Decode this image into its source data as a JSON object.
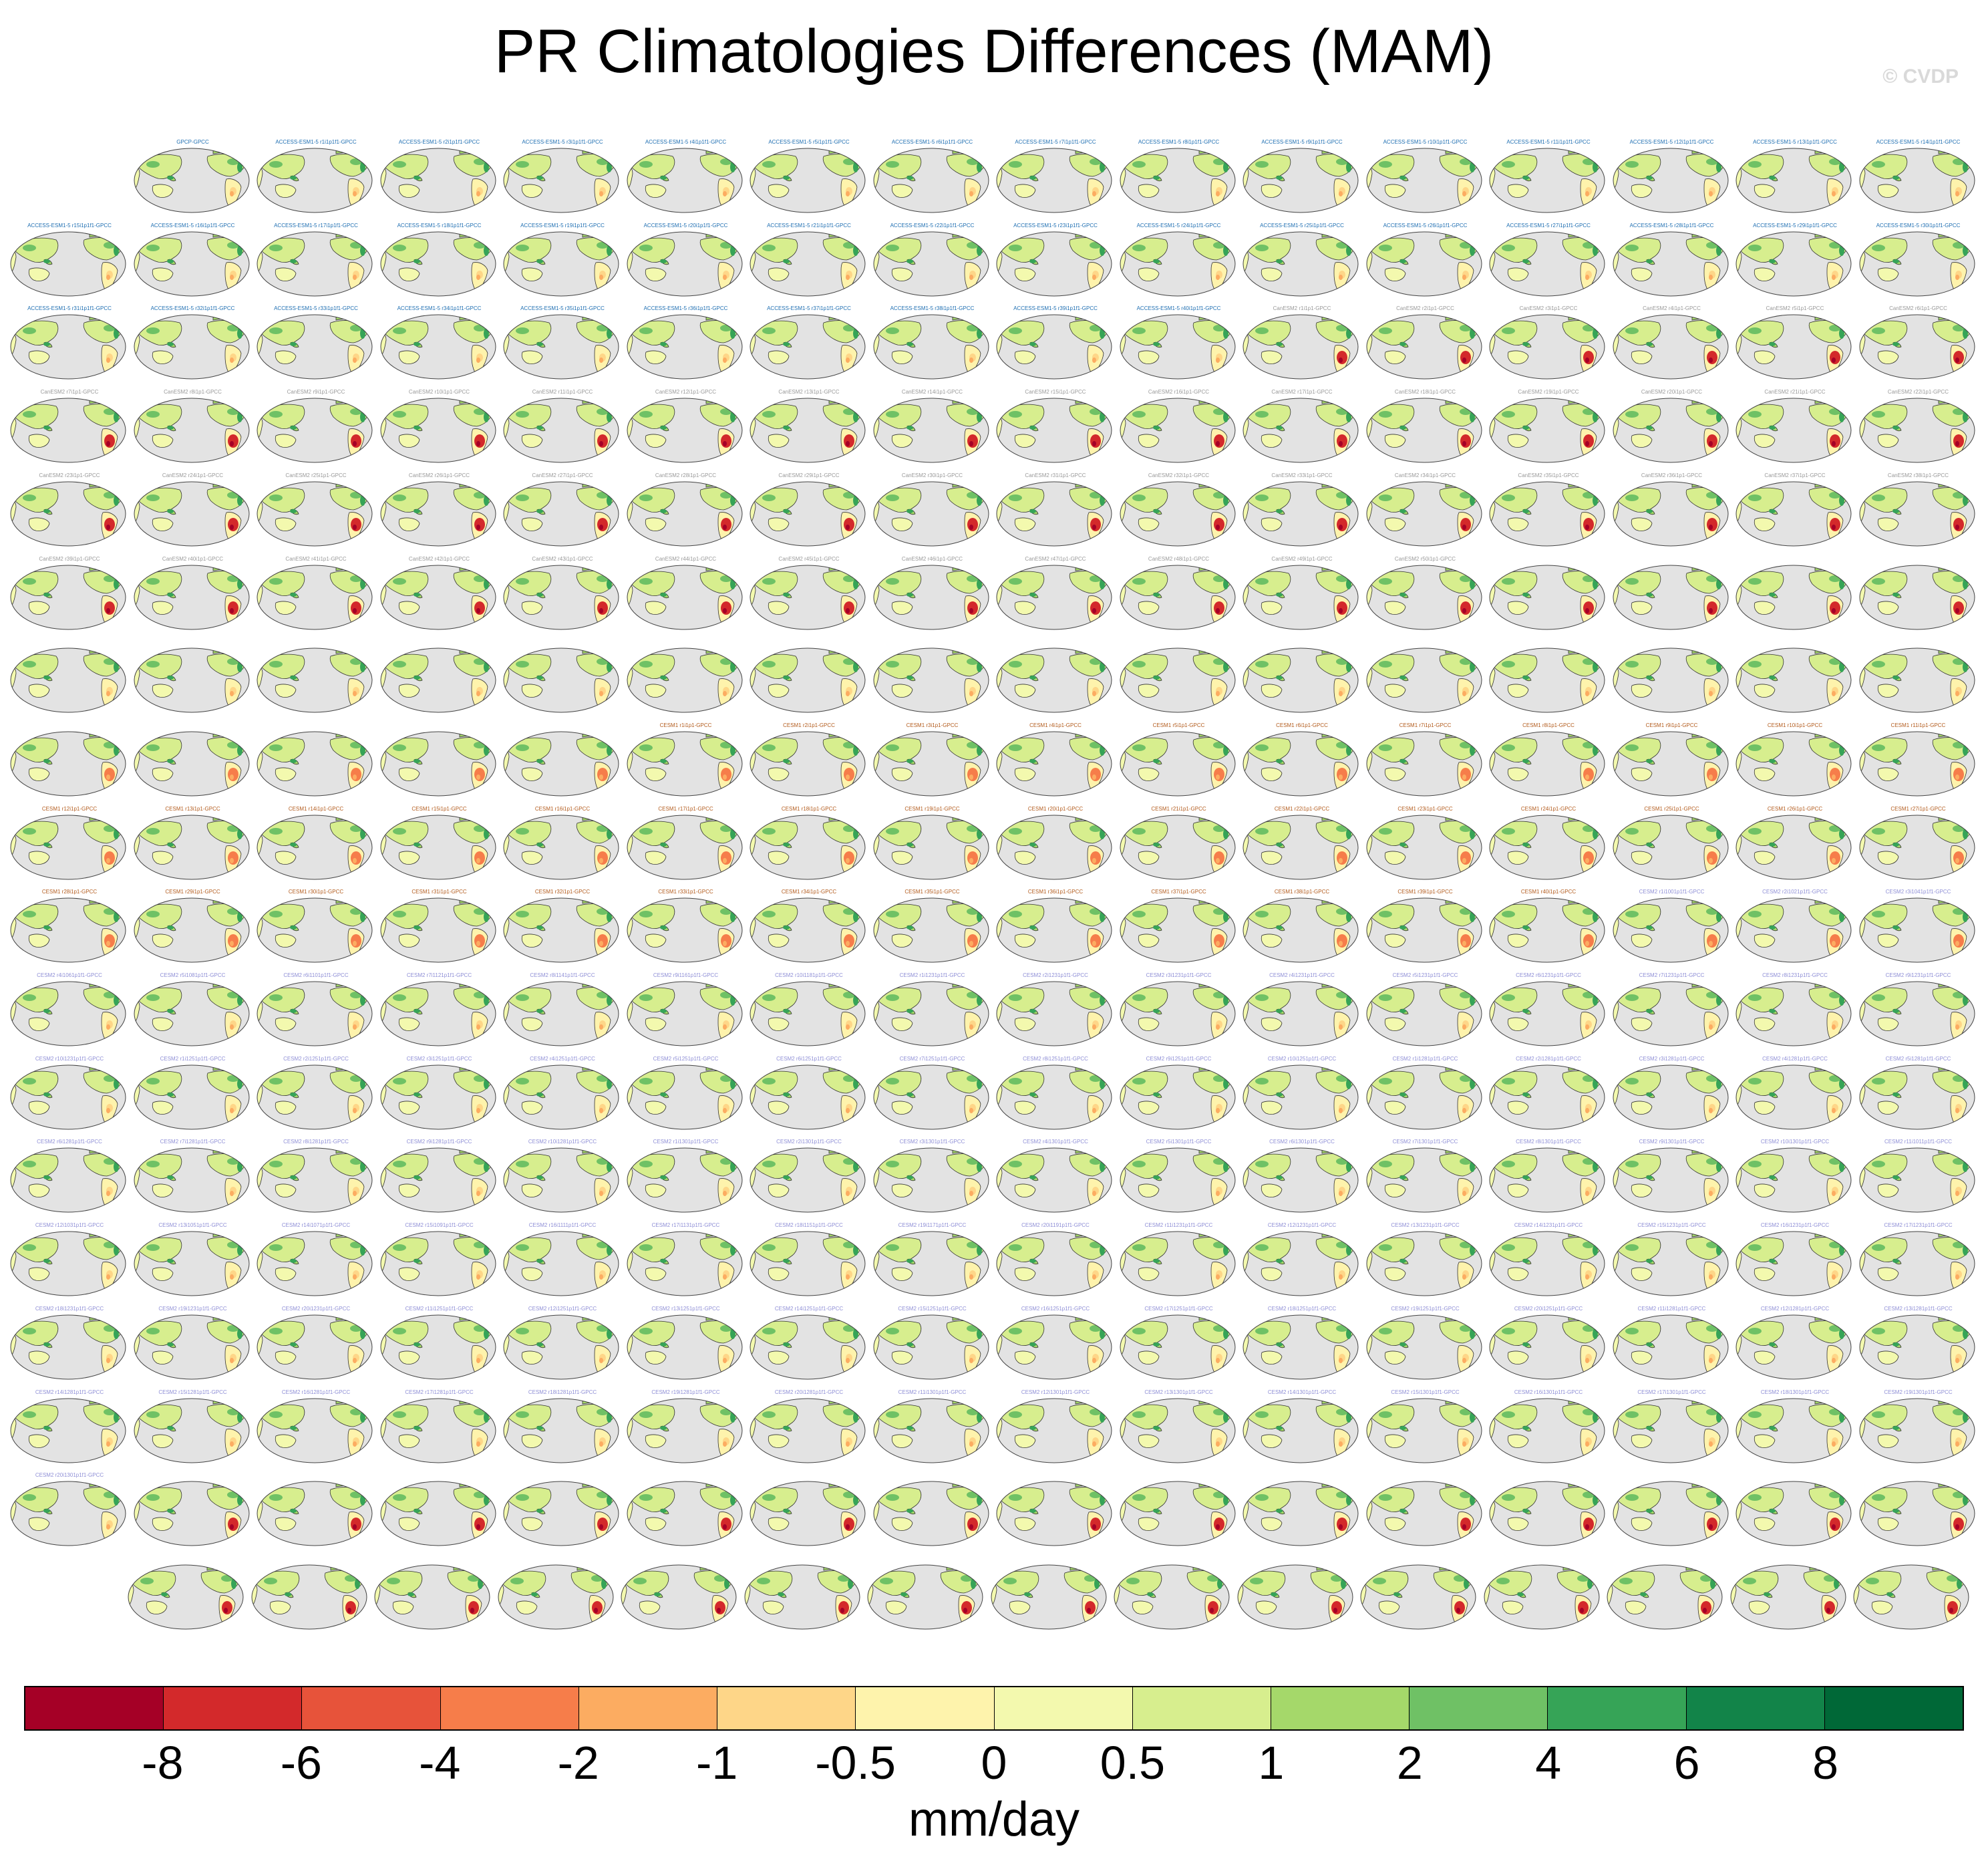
{
  "title": "PR Climatologies Differences (MAM)",
  "watermark": "© CVDP",
  "colors": {
    "ocean": "#e3e3e3",
    "coast": "#333333",
    "label_access": "#1f6fb2",
    "label_canesm": "#999999",
    "label_cesm1": "#b35c1e",
    "label_cesm2": "#8f8fd6"
  },
  "chart_data": {
    "type": "heatmap",
    "panel_rows": [
      {
        "labels": [
          "GPCP-GPCC",
          "ACCESS-ESM1-5 r1i1p1f1-GPCC",
          "ACCESS-ESM1-5 r2i1p1f1-GPCC",
          "ACCESS-ESM1-5 r3i1p1f1-GPCC",
          "ACCESS-ESM1-5 r4i1p1f1-GPCC",
          "ACCESS-ESM1-5 r5i1p1f1-GPCC",
          "ACCESS-ESM1-5 r6i1p1f1-GPCC",
          "ACCESS-ESM1-5 r7i1p1f1-GPCC",
          "ACCESS-ESM1-5 r8i1p1f1-GPCC",
          "ACCESS-ESM1-5 r9i1p1f1-GPCC",
          "ACCESS-ESM1-5 r10i1p1f1-GPCC",
          "ACCESS-ESM1-5 r11i1p1f1-GPCC",
          "ACCESS-ESM1-5 r12i1p1f1-GPCC",
          "ACCESS-ESM1-5 r13i1p1f1-GPCC",
          "ACCESS-ESM1-5 r14i1p1f1-GPCC"
        ],
        "offset": 1,
        "style": "access"
      },
      {
        "labels": [
          "ACCESS-ESM1-5 r15i1p1f1-GPCC",
          "ACCESS-ESM1-5 r16i1p1f1-GPCC",
          "ACCESS-ESM1-5 r17i1p1f1-GPCC",
          "ACCESS-ESM1-5 r18i1p1f1-GPCC",
          "ACCESS-ESM1-5 r19i1p1f1-GPCC",
          "ACCESS-ESM1-5 r20i1p1f1-GPCC",
          "ACCESS-ESM1-5 r21i1p1f1-GPCC",
          "ACCESS-ESM1-5 r22i1p1f1-GPCC",
          "ACCESS-ESM1-5 r23i1p1f1-GPCC",
          "ACCESS-ESM1-5 r24i1p1f1-GPCC",
          "ACCESS-ESM1-5 r25i1p1f1-GPCC",
          "ACCESS-ESM1-5 r26i1p1f1-GPCC",
          "ACCESS-ESM1-5 r27i1p1f1-GPCC",
          "ACCESS-ESM1-5 r28i1p1f1-GPCC",
          "ACCESS-ESM1-5 r29i1p1f1-GPCC",
          "ACCESS-ESM1-5 r30i1p1f1-GPCC"
        ],
        "offset": 0,
        "style": "access"
      },
      {
        "labels": [
          "ACCESS-ESM1-5 r31i1p1f1-GPCC",
          "ACCESS-ESM1-5 r32i1p1f1-GPCC",
          "ACCESS-ESM1-5 r33i1p1f1-GPCC",
          "ACCESS-ESM1-5 r34i1p1f1-GPCC",
          "ACCESS-ESM1-5 r35i1p1f1-GPCC",
          "ACCESS-ESM1-5 r36i1p1f1-GPCC",
          "ACCESS-ESM1-5 r37i1p1f1-GPCC",
          "ACCESS-ESM1-5 r38i1p1f1-GPCC",
          "ACCESS-ESM1-5 r39i1p1f1-GPCC",
          "ACCESS-ESM1-5 r40i1p1f1-GPCC",
          "CanESM2 r1i1p1-GPCC",
          "CanESM2 r2i1p1-GPCC",
          "CanESM2 r3i1p1-GPCC",
          "CanESM2 r4i1p1-GPCC",
          "CanESM2 r5i1p1-GPCC",
          "CanESM2 r6i1p1-GPCC"
        ],
        "offset": 0,
        "style": "mixed_row3"
      },
      {
        "labels": [
          "CanESM2 r7i1p1-GPCC",
          "CanESM2 r8i1p1-GPCC",
          "CanESM2 r9i1p1-GPCC",
          "CanESM2 r10i1p1-GPCC",
          "CanESM2 r11i1p1-GPCC",
          "CanESM2 r12i1p1-GPCC",
          "CanESM2 r13i1p1-GPCC",
          "CanESM2 r14i1p1-GPCC",
          "CanESM2 r15i1p1-GPCC",
          "CanESM2 r16i1p1-GPCC",
          "CanESM2 r17i1p1-GPCC",
          "CanESM2 r18i1p1-GPCC",
          "CanESM2 r19i1p1-GPCC",
          "CanESM2 r20i1p1-GPCC",
          "CanESM2 r21i1p1-GPCC",
          "CanESM2 r22i1p1-GPCC"
        ],
        "offset": 0,
        "style": "canesm"
      },
      {
        "labels": [
          "CanESM2 r23i1p1-GPCC",
          "CanESM2 r24i1p1-GPCC",
          "CanESM2 r25i1p1-GPCC",
          "CanESM2 r26i1p1-GPCC",
          "CanESM2 r27i1p1-GPCC",
          "CanESM2 r28i1p1-GPCC",
          "CanESM2 r29i1p1-GPCC",
          "CanESM2 r30i1p1-GPCC",
          "CanESM2 r31i1p1-GPCC",
          "CanESM2 r32i1p1-GPCC",
          "CanESM2 r33i1p1-GPCC",
          "CanESM2 r34i1p1-GPCC",
          "CanESM2 r35i1p1-GPCC",
          "CanESM2 r36i1p1-GPCC",
          "CanESM2 r37i1p1-GPCC",
          "CanESM2 r38i1p1-GPCC"
        ],
        "offset": 0,
        "style": "canesm"
      },
      {
        "labels": [
          "CanESM2 r39i1p1-GPCC",
          "CanESM2 r40i1p1-GPCC",
          "CanESM2 r41i1p1-GPCC",
          "CanESM2 r42i1p1-GPCC",
          "CanESM2 r43i1p1-GPCC",
          "CanESM2 r44i1p1-GPCC",
          "CanESM2 r45i1p1-GPCC",
          "CanESM2 r46i1p1-GPCC",
          "CanESM2 r47i1p1-GPCC",
          "CanESM2 r48i1p1-GPCC",
          "CanESM2 r49i1p1-GPCC",
          "CanESM2 r50i1p1-GPCC",
          "",
          "",
          "",
          ""
        ],
        "offset": 0,
        "style": "canesm"
      },
      {
        "labels": [
          "",
          "",
          "",
          "",
          "",
          "",
          "",
          "",
          "",
          "",
          "",
          "",
          "",
          "",
          "",
          ""
        ],
        "offset": 0,
        "style": "canesm"
      },
      {
        "labels": [
          "",
          "",
          "",
          "",
          "",
          "CESM1 r1i1p1-GPCC",
          "CESM1 r2i1p1-GPCC",
          "CESM1 r3i1p1-GPCC",
          "CESM1 r4i1p1-GPCC",
          "CESM1 r5i1p1-GPCC",
          "CESM1 r6i1p1-GPCC",
          "CESM1 r7i1p1-GPCC",
          "CESM1 r8i1p1-GPCC",
          "CESM1 r9i1p1-GPCC",
          "CESM1 r10i1p1-GPCC",
          "CESM1 r11i1p1-GPCC"
        ],
        "offset": 0,
        "style": "cesm1"
      },
      {
        "labels": [
          "CESM1 r12i1p1-GPCC",
          "CESM1 r13i1p1-GPCC",
          "CESM1 r14i1p1-GPCC",
          "CESM1 r15i1p1-GPCC",
          "CESM1 r16i1p1-GPCC",
          "CESM1 r17i1p1-GPCC",
          "CESM1 r18i1p1-GPCC",
          "CESM1 r19i1p1-GPCC",
          "CESM1 r20i1p1-GPCC",
          "CESM1 r21i1p1-GPCC",
          "CESM1 r22i1p1-GPCC",
          "CESM1 r23i1p1-GPCC",
          "CESM1 r24i1p1-GPCC",
          "CESM1 r25i1p1-GPCC",
          "CESM1 r26i1p1-GPCC",
          "CESM1 r27i1p1-GPCC"
        ],
        "offset": 0,
        "style": "cesm1"
      },
      {
        "labels": [
          "CESM1 r28i1p1-GPCC",
          "CESM1 r29i1p1-GPCC",
          "CESM1 r30i1p1-GPCC",
          "CESM1 r31i1p1-GPCC",
          "CESM1 r32i1p1-GPCC",
          "CESM1 r33i1p1-GPCC",
          "CESM1 r34i1p1-GPCC",
          "CESM1 r35i1p1-GPCC",
          "CESM1 r36i1p1-GPCC",
          "CESM1 r37i1p1-GPCC",
          "CESM1 r38i1p1-GPCC",
          "CESM1 r39i1p1-GPCC",
          "CESM1 r40i1p1-GPCC",
          "CESM2 r1i1001p1f1-GPCC",
          "CESM2 r2i1021p1f1-GPCC",
          "CESM2 r3i1041p1f1-GPCC"
        ],
        "offset": 0,
        "style": "mixed_row10"
      },
      {
        "labels": [
          "CESM2 r4i1061p1f1-GPCC",
          "CESM2 r5i1081p1f1-GPCC",
          "CESM2 r6i1101p1f1-GPCC",
          "CESM2 r7i1121p1f1-GPCC",
          "CESM2 r8i1141p1f1-GPCC",
          "CESM2 r9i1161p1f1-GPCC",
          "CESM2 r10i1181p1f1-GPCC",
          "CESM2 r1i1231p1f1-GPCC",
          "CESM2 r2i1231p1f1-GPCC",
          "CESM2 r3i1231p1f1-GPCC",
          "CESM2 r4i1231p1f1-GPCC",
          "CESM2 r5i1231p1f1-GPCC",
          "CESM2 r6i1231p1f1-GPCC",
          "CESM2 r7i1231p1f1-GPCC",
          "CESM2 r8i1231p1f1-GPCC",
          "CESM2 r9i1231p1f1-GPCC"
        ],
        "offset": 0,
        "style": "cesm2"
      },
      {
        "labels": [
          "CESM2 r10i1231p1f1-GPCC",
          "CESM2 r1i1251p1f1-GPCC",
          "CESM2 r2i1251p1f1-GPCC",
          "CESM2 r3i1251p1f1-GPCC",
          "CESM2 r4i1251p1f1-GPCC",
          "CESM2 r5i1251p1f1-GPCC",
          "CESM2 r6i1251p1f1-GPCC",
          "CESM2 r7i1251p1f1-GPCC",
          "CESM2 r8i1251p1f1-GPCC",
          "CESM2 r9i1251p1f1-GPCC",
          "CESM2 r10i1251p1f1-GPCC",
          "CESM2 r1i1281p1f1-GPCC",
          "CESM2 r2i1281p1f1-GPCC",
          "CESM2 r3i1281p1f1-GPCC",
          "CESM2 r4i1281p1f1-GPCC",
          "CESM2 r5i1281p1f1-GPCC"
        ],
        "offset": 0,
        "style": "cesm2"
      },
      {
        "labels": [
          "CESM2 r6i1281p1f1-GPCC",
          "CESM2 r7i1281p1f1-GPCC",
          "CESM2 r8i1281p1f1-GPCC",
          "CESM2 r9i1281p1f1-GPCC",
          "CESM2 r10i1281p1f1-GPCC",
          "CESM2 r1i1301p1f1-GPCC",
          "CESM2 r2i1301p1f1-GPCC",
          "CESM2 r3i1301p1f1-GPCC",
          "CESM2 r4i1301p1f1-GPCC",
          "CESM2 r5i1301p1f1-GPCC",
          "CESM2 r6i1301p1f1-GPCC",
          "CESM2 r7i1301p1f1-GPCC",
          "CESM2 r8i1301p1f1-GPCC",
          "CESM2 r9i1301p1f1-GPCC",
          "CESM2 r10i1301p1f1-GPCC",
          "CESM2 r11i1011p1f1-GPCC"
        ],
        "offset": 0,
        "style": "cesm2"
      },
      {
        "labels": [
          "CESM2 r12i1031p1f1-GPCC",
          "CESM2 r13i1051p1f1-GPCC",
          "CESM2 r14i1071p1f1-GPCC",
          "CESM2 r15i1091p1f1-GPCC",
          "CESM2 r16i1111p1f1-GPCC",
          "CESM2 r17i1131p1f1-GPCC",
          "CESM2 r18i1151p1f1-GPCC",
          "CESM2 r19i1171p1f1-GPCC",
          "CESM2 r20i1191p1f1-GPCC",
          "CESM2 r11i1231p1f1-GPCC",
          "CESM2 r12i1231p1f1-GPCC",
          "CESM2 r13i1231p1f1-GPCC",
          "CESM2 r14i1231p1f1-GPCC",
          "CESM2 r15i1231p1f1-GPCC",
          "CESM2 r16i1231p1f1-GPCC",
          "CESM2 r17i1231p1f1-GPCC"
        ],
        "offset": 0,
        "style": "cesm2"
      },
      {
        "labels": [
          "CESM2 r18i1231p1f1-GPCC",
          "CESM2 r19i1231p1f1-GPCC",
          "CESM2 r20i1231p1f1-GPCC",
          "CESM2 r11i1251p1f1-GPCC",
          "CESM2 r12i1251p1f1-GPCC",
          "CESM2 r13i1251p1f1-GPCC",
          "CESM2 r14i1251p1f1-GPCC",
          "CESM2 r15i1251p1f1-GPCC",
          "CESM2 r16i1251p1f1-GPCC",
          "CESM2 r17i1251p1f1-GPCC",
          "CESM2 r18i1251p1f1-GPCC",
          "CESM2 r19i1251p1f1-GPCC",
          "CESM2 r20i1251p1f1-GPCC",
          "CESM2 r11i1281p1f1-GPCC",
          "CESM2 r12i1281p1f1-GPCC",
          "CESM2 r13i1281p1f1-GPCC"
        ],
        "offset": 0,
        "style": "cesm2"
      },
      {
        "labels": [
          "CESM2 r14i1281p1f1-GPCC",
          "CESM2 r15i1281p1f1-GPCC",
          "CESM2 r16i1281p1f1-GPCC",
          "CESM2 r17i1281p1f1-GPCC",
          "CESM2 r18i1281p1f1-GPCC",
          "CESM2 r19i1281p1f1-GPCC",
          "CESM2 r20i1281p1f1-GPCC",
          "CESM2 r11i1301p1f1-GPCC",
          "CESM2 r12i1301p1f1-GPCC",
          "CESM2 r13i1301p1f1-GPCC",
          "CESM2 r14i1301p1f1-GPCC",
          "CESM2 r15i1301p1f1-GPCC",
          "CESM2 r16i1301p1f1-GPCC",
          "CESM2 r17i1301p1f1-GPCC",
          "CESM2 r18i1301p1f1-GPCC",
          "CESM2 r19i1301p1f1-GPCC"
        ],
        "offset": 0,
        "style": "cesm2"
      },
      {
        "labels": [
          "CESM2 r20i1301p1f1-GPCC",
          "",
          "",
          "",
          "",
          "",
          "",
          "",
          "",
          "",
          "",
          "",
          "",
          "",
          "",
          ""
        ],
        "offset": 0,
        "style": "cesm2_then_canesm"
      },
      {
        "labels": [
          "",
          "",
          "",
          "",
          "",
          "",
          "",
          "",
          "",
          "",
          "",
          "",
          "",
          "",
          "",
          ""
        ],
        "offset": 0.5,
        "style": "canesm",
        "count": 15
      }
    ],
    "colorbar": {
      "colors": [
        "#a50026",
        "#d3292b",
        "#e7533a",
        "#f67d4a",
        "#fcac61",
        "#fed688",
        "#fef3ac",
        "#f3f9ae",
        "#d7ee8e",
        "#a5d86a",
        "#6fc165",
        "#36a457",
        "#128449",
        "#006837"
      ],
      "tick_labels": [
        "-8",
        "-6",
        "-4",
        "-2",
        "-1",
        "-0.5",
        "0",
        "0.5",
        "1",
        "2",
        "4",
        "6",
        "8"
      ],
      "units": "mm/day"
    }
  }
}
